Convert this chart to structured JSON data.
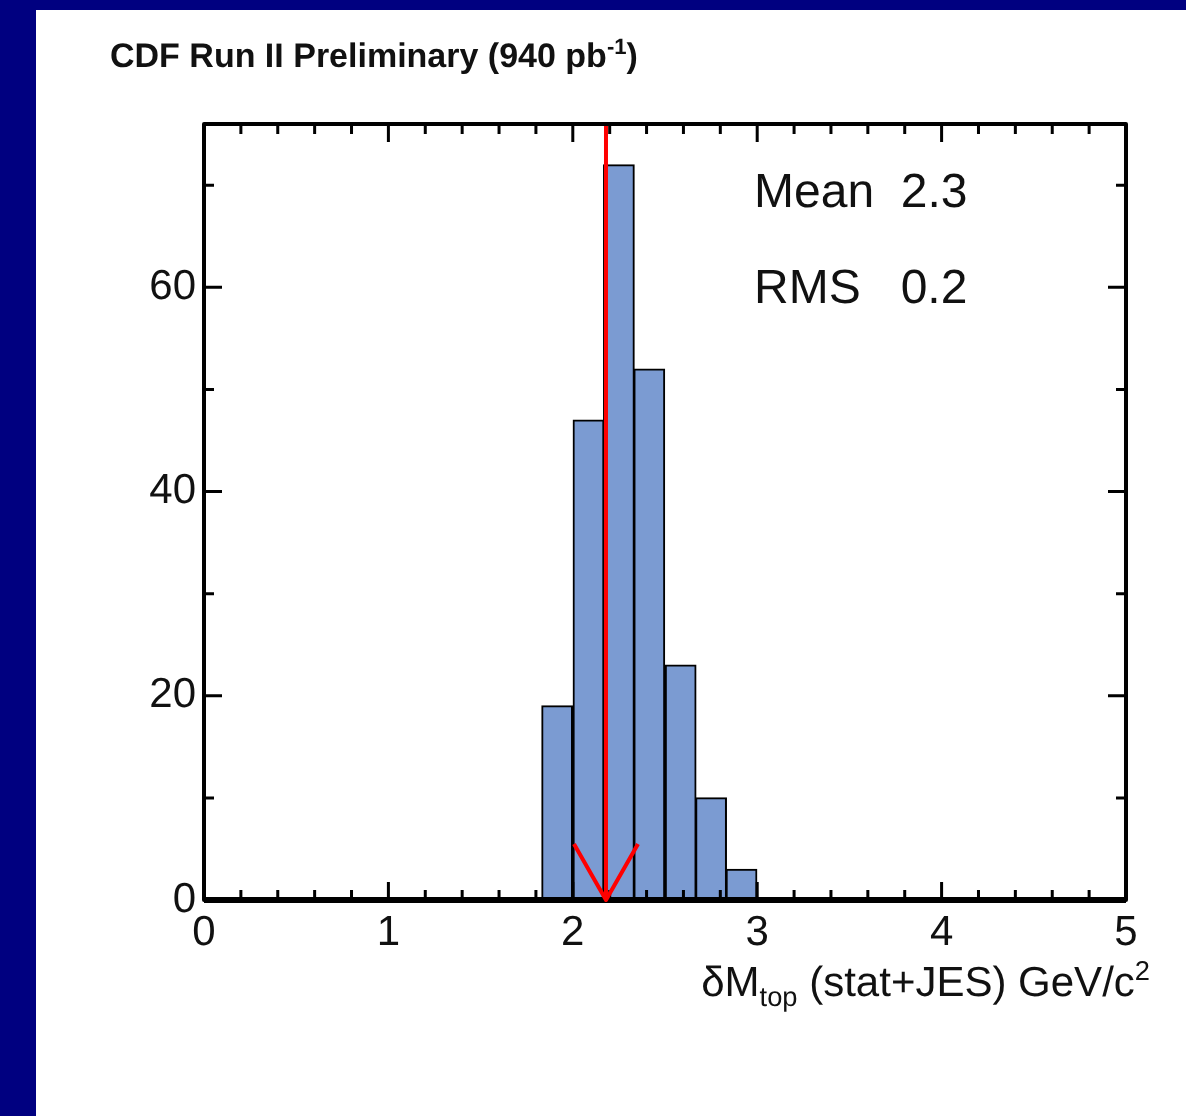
{
  "chart_data": {
    "type": "histogram",
    "title": "CDF Run II Preliminary (940 pb$^{-1}$)",
    "xlabel": "δM$_{top}$ (stat+JES) GeV/c$^{2}$",
    "bins": [
      1.83,
      2.0,
      2.17,
      2.33,
      2.5,
      2.67,
      2.83,
      3.0
    ],
    "values": [
      19,
      47,
      72,
      52,
      23,
      10,
      3
    ],
    "color": "#7b9bd2",
    "xlim": [
      0,
      5
    ],
    "xticks": [
      0,
      {
        "value": 0.2,
        "label": null
      },
      {
        "value": 0.4,
        "label": null
      },
      {
        "value": 0.6,
        "label": null
      },
      {
        "value": 0.8,
        "label": null
      },
      1,
      {
        "value": 1.2,
        "label": null
      },
      {
        "value": 1.4,
        "label": null
      },
      {
        "value": 1.6,
        "label": null
      },
      {
        "value": 1.8,
        "label": null
      },
      2,
      {
        "value": 2.2,
        "label": null
      },
      {
        "value": 2.4,
        "label": null
      },
      {
        "value": 2.6,
        "label": null
      },
      {
        "value": 2.8,
        "label": null
      },
      3,
      {
        "value": 3.2,
        "label": null
      },
      {
        "value": 3.4,
        "label": null
      },
      {
        "value": 3.6,
        "label": null
      },
      {
        "value": 3.8,
        "label": null
      },
      4,
      {
        "value": 4.2,
        "label": null
      },
      {
        "value": 4.4,
        "label": null
      },
      {
        "value": 4.6,
        "label": null
      },
      {
        "value": 4.8,
        "label": null
      },
      5
    ],
    "ylim": [
      0,
      76
    ],
    "yticks": [
      0,
      {
        "value": 10,
        "label": null
      },
      20,
      {
        "value": 30,
        "label": null
      },
      40,
      {
        "value": 50,
        "label": null
      },
      60,
      {
        "value": 70,
        "label": null
      }
    ],
    "ref_lines": [
      {
        "axis": "x",
        "value": 2.18,
        "color": "#ff0000"
      }
    ],
    "annotations": [
      "Mean  2.3",
      "RMS   0.2"
    ],
    "grid": false,
    "legend": false
  }
}
